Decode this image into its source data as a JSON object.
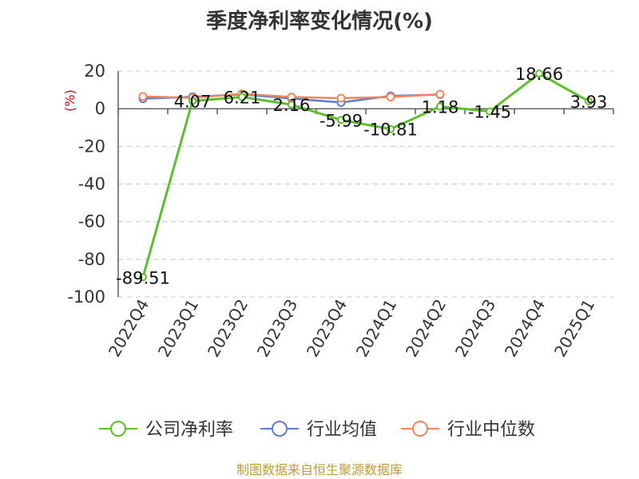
{
  "chart_data": {
    "type": "line",
    "title": "季度净利率变化情况(%)",
    "ylabel": "(%)",
    "categories": [
      "2022Q4",
      "2023Q1",
      "2023Q2",
      "2023Q3",
      "2023Q4",
      "2024Q1",
      "2024Q2",
      "2024Q3",
      "2024Q4",
      "2025Q1"
    ],
    "ylim": [
      -100,
      20
    ],
    "yticks": [
      20,
      0,
      -20,
      -40,
      -60,
      -80,
      -100
    ],
    "grid": true,
    "legend_position": "bottom",
    "series": [
      {
        "name": "公司净利率",
        "color": "#5cc02a",
        "values": [
          -89.51,
          4.07,
          6.21,
          2.16,
          -5.99,
          -10.81,
          1.18,
          -1.45,
          18.66,
          3.93
        ],
        "labels": [
          "-89.51",
          "4.07",
          "6.21",
          "2.16",
          "-5.99",
          "-10.81",
          "1.18",
          "-1.45",
          "18.66",
          "3.93"
        ]
      },
      {
        "name": "行业均值",
        "color": "#5b7bd5",
        "values": [
          5.3,
          6.3,
          7.6,
          5.4,
          3.3,
          6.8,
          7.5,
          null,
          null,
          null
        ]
      },
      {
        "name": "行业中位数",
        "color": "#f0875a",
        "values": [
          6.5,
          5.8,
          7.9,
          6.2,
          5.6,
          6.2,
          7.7,
          null,
          null,
          null
        ]
      }
    ]
  },
  "footer": {
    "source": "制图数据来自恒生聚源数据库"
  }
}
